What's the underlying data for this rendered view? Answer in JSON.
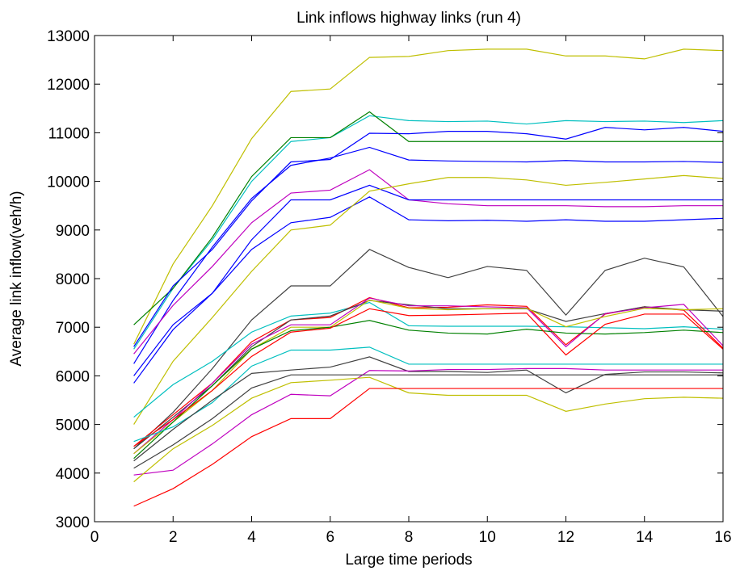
{
  "chart_data": {
    "type": "line",
    "title": "Link inflows highway links (run 4)",
    "xlabel": "Large time periods",
    "ylabel": "Average link inflow(veh/h)",
    "xlim": [
      0,
      16
    ],
    "ylim": [
      3000,
      13000
    ],
    "xticks": [
      0,
      2,
      4,
      6,
      8,
      10,
      12,
      14,
      16
    ],
    "yticks": [
      3000,
      4000,
      5000,
      6000,
      7000,
      8000,
      9000,
      10000,
      11000,
      12000,
      13000
    ],
    "grid": false,
    "legend": "none",
    "x": [
      1,
      2,
      3,
      4,
      5,
      6,
      7,
      8,
      9,
      10,
      11,
      12,
      13,
      14,
      15,
      16
    ],
    "series": [
      {
        "color": "#bfbf00",
        "values": [
          6650,
          8300,
          9500,
          10880,
          11850,
          11900,
          12550,
          12570,
          12690,
          12720,
          12720,
          12580,
          12580,
          12520,
          12720,
          12690
        ]
      },
      {
        "color": "#00bfbf",
        "values": [
          6550,
          7800,
          8800,
          10000,
          10820,
          10900,
          11350,
          11250,
          11230,
          11240,
          11180,
          11250,
          11230,
          11240,
          11210,
          11250
        ]
      },
      {
        "color": "#008000",
        "values": [
          7050,
          7800,
          8850,
          10100,
          10900,
          10900,
          11430,
          10820,
          10820,
          10820,
          10820,
          10820,
          10820,
          10820,
          10820,
          10820
        ]
      },
      {
        "color": "#0000ff",
        "values": [
          6600,
          7850,
          8600,
          9600,
          10400,
          10450,
          10990,
          10980,
          11030,
          11030,
          10980,
          10870,
          11110,
          11060,
          11110,
          11030
        ]
      },
      {
        "color": "#0000ff",
        "values": [
          6250,
          7550,
          8650,
          9650,
          10330,
          10480,
          10700,
          10440,
          10420,
          10410,
          10400,
          10430,
          10400,
          10400,
          10410,
          10390
        ]
      },
      {
        "color": "#bf00bf",
        "values": [
          6450,
          7450,
          8250,
          9150,
          9760,
          9820,
          10240,
          9620,
          9540,
          9500,
          9500,
          9500,
          9480,
          9480,
          9500,
          9500
        ]
      },
      {
        "color": "#0000ff",
        "values": [
          6000,
          7050,
          7700,
          8800,
          9620,
          9620,
          9920,
          9620,
          9620,
          9620,
          9620,
          9620,
          9620,
          9620,
          9620,
          9620
        ]
      },
      {
        "color": "#0000ff",
        "values": [
          5850,
          6950,
          7700,
          8600,
          9150,
          9260,
          9680,
          9210,
          9190,
          9200,
          9180,
          9210,
          9180,
          9180,
          9210,
          9240
        ]
      },
      {
        "color": "#bfbf00",
        "values": [
          5000,
          6300,
          7200,
          8150,
          9000,
          9100,
          9800,
          9950,
          10080,
          10080,
          10030,
          9920,
          9980,
          10050,
          10120,
          10060
        ]
      },
      {
        "color": "#404040",
        "values": [
          4500,
          5250,
          6150,
          7150,
          7850,
          7850,
          8600,
          8230,
          8020,
          8250,
          8170,
          7250,
          8170,
          8420,
          8240,
          7220
        ]
      },
      {
        "color": "#00bfbf",
        "values": [
          5150,
          5820,
          6300,
          6900,
          7230,
          7290,
          7510,
          7030,
          7020,
          7020,
          7020,
          7010,
          6990,
          6970,
          7010,
          6960
        ]
      },
      {
        "color": "#ff0000",
        "values": [
          4550,
          5200,
          5850,
          6700,
          7150,
          7200,
          7610,
          7400,
          7410,
          7460,
          7430,
          6640,
          7270,
          7420,
          7350,
          6570
        ]
      },
      {
        "color": "#404040",
        "values": [
          4500,
          5150,
          5800,
          6600,
          7150,
          7230,
          7550,
          7460,
          7380,
          7380,
          7380,
          7120,
          7280,
          7420,
          7360,
          7330
        ]
      },
      {
        "color": "#bf00bf",
        "values": [
          4400,
          5100,
          5850,
          6650,
          7050,
          7050,
          7600,
          7440,
          7440,
          7420,
          7400,
          6600,
          7280,
          7400,
          7470,
          6620
        ]
      },
      {
        "color": "#bfbf00",
        "values": [
          4400,
          5050,
          5700,
          6550,
          7000,
          7000,
          7560,
          7390,
          7360,
          7380,
          7390,
          7010,
          7220,
          7390,
          7360,
          7380
        ]
      },
      {
        "color": "#008000",
        "values": [
          4300,
          5050,
          5800,
          6550,
          6930,
          7000,
          7140,
          6940,
          6880,
          6860,
          6960,
          6880,
          6860,
          6890,
          6940,
          6890
        ]
      },
      {
        "color": "#ff0000",
        "values": [
          4550,
          5100,
          5700,
          6400,
          6900,
          6980,
          7380,
          7240,
          7250,
          7270,
          7290,
          6430,
          7060,
          7270,
          7270,
          6550
        ]
      },
      {
        "color": "#00bfbf",
        "values": [
          4650,
          4950,
          5450,
          6200,
          6530,
          6530,
          6590,
          6240,
          6240,
          6240,
          6240,
          6240,
          6240,
          6240,
          6240,
          6240
        ]
      },
      {
        "color": "#404040",
        "values": [
          4250,
          4900,
          5500,
          6050,
          6120,
          6180,
          6390,
          6090,
          6090,
          6070,
          6120,
          5650,
          6030,
          6080,
          6080,
          6060
        ]
      },
      {
        "color": "#bf00bf",
        "values": [
          3960,
          4060,
          4600,
          5200,
          5620,
          5590,
          6110,
          6100,
          6130,
          6130,
          6150,
          6150,
          6120,
          6120,
          6120,
          6120
        ]
      },
      {
        "color": "#404040",
        "values": [
          4100,
          4580,
          5120,
          5750,
          6020,
          6020,
          6020,
          6020,
          6020,
          6020,
          6020,
          6020,
          6020,
          6020,
          6020,
          6020
        ]
      },
      {
        "color": "#bfbf00",
        "values": [
          3820,
          4500,
          4980,
          5540,
          5860,
          5910,
          5970,
          5650,
          5600,
          5600,
          5600,
          5270,
          5420,
          5530,
          5560,
          5540
        ]
      },
      {
        "color": "#ff0000",
        "values": [
          3320,
          3680,
          4180,
          4750,
          5120,
          5120,
          5740,
          5740,
          5740,
          5740,
          5740,
          5740,
          5740,
          5740,
          5740,
          5740
        ]
      }
    ]
  }
}
